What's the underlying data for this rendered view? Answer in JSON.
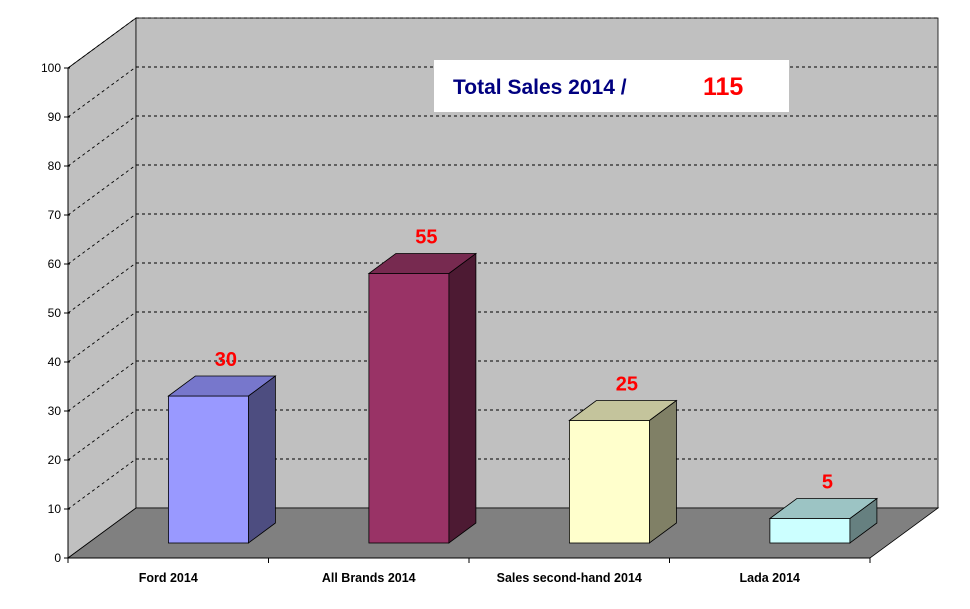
{
  "chart_data": {
    "type": "bar",
    "style": "3d",
    "categories": [
      "Ford 2014",
      "All Brands 2014",
      "Sales second-hand 2014",
      "Lada 2014"
    ],
    "values": [
      30,
      55,
      25,
      5
    ],
    "data_labels": [
      "30",
      "55",
      "25",
      "5"
    ],
    "ylim": [
      0,
      100
    ],
    "yticks": [
      "0",
      "10",
      "20",
      "30",
      "40",
      "50",
      "60",
      "70",
      "80",
      "90",
      "100"
    ],
    "grid": "dashed horizontal",
    "legend": "none",
    "annotation": {
      "label": "Total Sales 2014 /",
      "value": "115",
      "label_color": "#000080",
      "value_color": "#ff0000"
    },
    "colors": {
      "bar_fronts": [
        "#9999ff",
        "#993366",
        "#ffffcc",
        "#ccffff"
      ],
      "bar_tops": [
        "#7777cc",
        "#772a50",
        "#c4c49c",
        "#9cc4c4"
      ],
      "bar_sides": [
        "#4d4d80",
        "#4d1a33",
        "#808066",
        "#668080"
      ],
      "back_wall": "#c0c0c0",
      "left_wall": "#c0c0c0",
      "floor": "#808080",
      "data_label": "#ff0000"
    }
  }
}
